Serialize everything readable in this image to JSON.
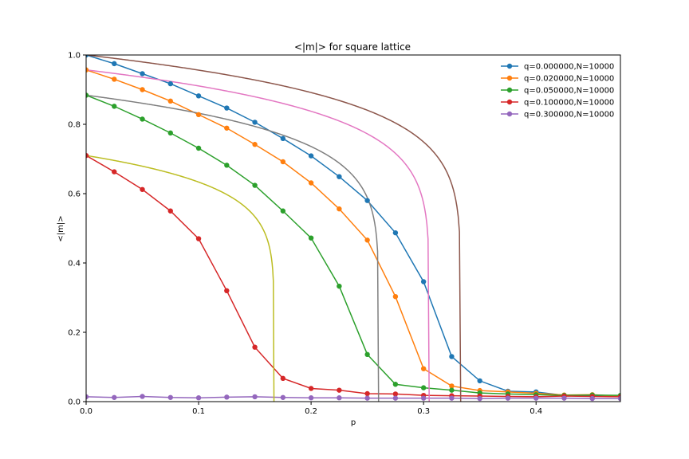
{
  "chart_data": {
    "type": "line",
    "title": "<|m|> for square lattice",
    "xlabel": "p",
    "ylabel": "<|m|>",
    "xlim": [
      0,
      0.475
    ],
    "ylim": [
      0,
      1.0
    ],
    "xticks": [
      0.0,
      0.1,
      0.2,
      0.3,
      0.4
    ],
    "yticks": [
      0.0,
      0.2,
      0.4,
      0.6,
      0.8,
      1.0
    ],
    "xtick_labels": [
      "0.0",
      "0.1",
      "0.2",
      "0.3",
      "0.4"
    ],
    "ytick_labels": [
      "0.0",
      "0.2",
      "0.4",
      "0.6",
      "0.8",
      "1.0"
    ],
    "grid": false,
    "legend_position": "top-right",
    "x": [
      0.0,
      0.025,
      0.05,
      0.075,
      0.1,
      0.125,
      0.15,
      0.175,
      0.2,
      0.225,
      0.25,
      0.275,
      0.3,
      0.325,
      0.35,
      0.375,
      0.4,
      0.425,
      0.45,
      0.475
    ],
    "series": [
      {
        "name": "q=0.000000,N=10000",
        "color": "#1f77b4",
        "marker": true,
        "values": [
          1.0,
          0.975,
          0.946,
          0.917,
          0.882,
          0.847,
          0.806,
          0.759,
          0.709,
          0.649,
          0.58,
          0.487,
          0.346,
          0.13,
          0.06,
          0.03,
          0.028,
          0.018,
          0.016,
          0.015
        ]
      },
      {
        "name": "q=0.020000,N=10000",
        "color": "#ff7f0e",
        "marker": true,
        "values": [
          0.957,
          0.93,
          0.9,
          0.867,
          0.828,
          0.789,
          0.742,
          0.692,
          0.631,
          0.556,
          0.466,
          0.303,
          0.095,
          0.045,
          0.032,
          0.028,
          0.024,
          0.019,
          0.02,
          0.015
        ]
      },
      {
        "name": "q=0.050000,N=10000",
        "color": "#2ca02c",
        "marker": true,
        "values": [
          0.884,
          0.852,
          0.815,
          0.775,
          0.731,
          0.682,
          0.624,
          0.55,
          0.472,
          0.333,
          0.136,
          0.05,
          0.04,
          0.033,
          0.025,
          0.022,
          0.02,
          0.018,
          0.019,
          0.018
        ]
      },
      {
        "name": "q=0.100000,N=10000",
        "color": "#d62728",
        "marker": true,
        "values": [
          0.71,
          0.663,
          0.612,
          0.55,
          0.47,
          0.32,
          0.157,
          0.067,
          0.038,
          0.033,
          0.023,
          0.022,
          0.018,
          0.017,
          0.016,
          0.015,
          0.014,
          0.016,
          0.015,
          0.014
        ]
      },
      {
        "name": "q=0.300000,N=10000",
        "color": "#9467bd",
        "marker": true,
        "values": [
          0.014,
          0.012,
          0.015,
          0.012,
          0.011,
          0.013,
          0.014,
          0.012,
          0.011,
          0.011,
          0.01,
          0.01,
          0.01,
          0.01,
          0.009,
          0.01,
          0.01,
          0.01,
          0.009,
          0.009
        ]
      }
    ],
    "fit_curves": [
      {
        "color": "#8c564b",
        "m0": 1.0,
        "pc": 0.333
      },
      {
        "color": "#e377c2",
        "m0": 0.957,
        "pc": 0.305
      },
      {
        "color": "#7f7f7f",
        "m0": 0.884,
        "pc": 0.26
      },
      {
        "color": "#bcbd22",
        "m0": 0.71,
        "pc": 0.167
      }
    ]
  }
}
